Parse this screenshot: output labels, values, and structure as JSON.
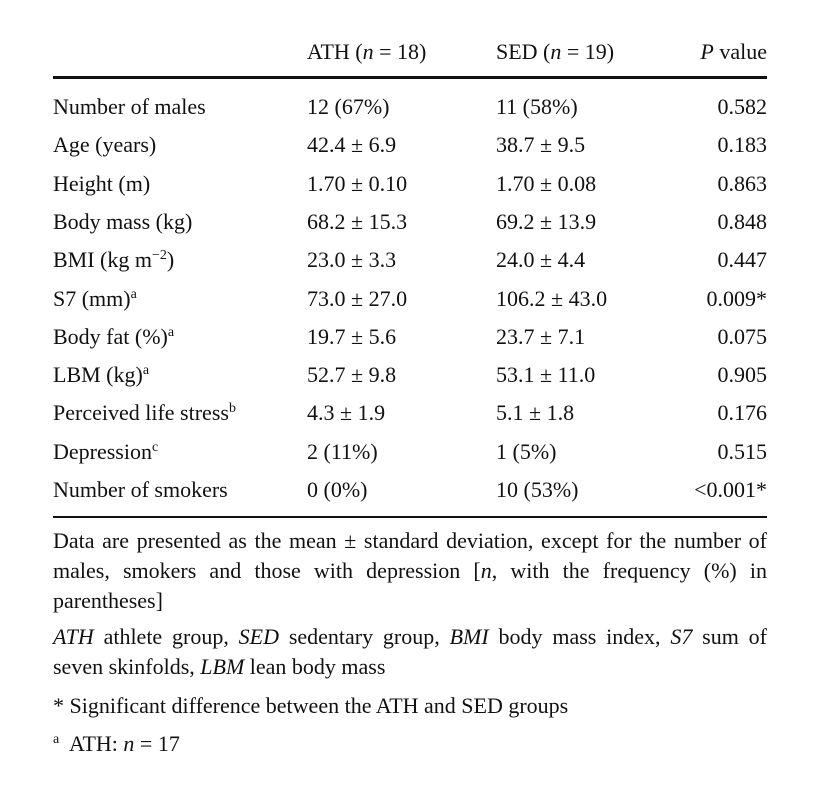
{
  "header": {
    "columns": [
      [
        {
          "t": "ATH ("
        },
        {
          "t": "n",
          "i": true
        },
        {
          "t": " = 18)"
        }
      ],
      [
        {
          "t": "SED ("
        },
        {
          "t": "n",
          "i": true
        },
        {
          "t": " = 19)"
        }
      ],
      [
        {
          "t": "P",
          "i": true
        },
        {
          "t": " value"
        }
      ]
    ]
  },
  "table": {
    "rows": [
      {
        "label": [
          {
            "t": "Number of males"
          }
        ],
        "cells": [
          "12 (67%)",
          "11 (58%)",
          "0.582"
        ]
      },
      {
        "label": [
          {
            "t": "Age (years)"
          }
        ],
        "cells": [
          "42.4 ± 6.9",
          "38.7 ± 9.5",
          "0.183"
        ]
      },
      {
        "label": [
          {
            "t": "Height (m)"
          }
        ],
        "cells": [
          "1.70 ± 0.10",
          "1.70 ± 0.08",
          "0.863"
        ]
      },
      {
        "label": [
          {
            "t": "Body mass (kg)"
          }
        ],
        "cells": [
          "68.2 ± 15.3",
          "69.2 ± 13.9",
          "0.848"
        ]
      },
      {
        "label": [
          {
            "t": "BMI (kg m"
          },
          {
            "t": "−2",
            "sup": true
          },
          {
            "t": ")"
          }
        ],
        "cells": [
          "23.0 ± 3.3",
          "24.0 ± 4.4",
          "0.447"
        ]
      },
      {
        "label": [
          {
            "t": "S7 (mm)"
          },
          {
            "t": "a",
            "sup": true
          }
        ],
        "cells": [
          "73.0 ± 27.0",
          "106.2 ± 43.0",
          "0.009*"
        ]
      },
      {
        "label": [
          {
            "t": "Body fat (%)"
          },
          {
            "t": "a",
            "sup": true
          }
        ],
        "cells": [
          "19.7 ± 5.6",
          "23.7 ± 7.1",
          "0.075"
        ]
      },
      {
        "label": [
          {
            "t": "LBM (kg)"
          },
          {
            "t": "a",
            "sup": true
          }
        ],
        "cells": [
          "52.7 ± 9.8",
          "53.1 ± 11.0",
          "0.905"
        ]
      },
      {
        "label": [
          {
            "t": "Perceived life stress"
          },
          {
            "t": "b",
            "sup": true
          }
        ],
        "cells": [
          "4.3 ± 1.9",
          "5.1 ± 1.8",
          "0.176"
        ]
      },
      {
        "label": [
          {
            "t": "Depression"
          },
          {
            "t": "c",
            "sup": true
          }
        ],
        "cells": [
          "2 (11%)",
          "1 (5%)",
          "0.515"
        ]
      },
      {
        "label": [
          {
            "t": "Number of smokers"
          }
        ],
        "cells": [
          "0 (0%)",
          "10 (53%)",
          "<0.001*"
        ]
      }
    ]
  },
  "notes": [
    [
      {
        "t": "Data are presented as the mean ± standard deviation, except for the number of males, smokers and those with depression ["
      },
      {
        "t": "n",
        "i": true
      },
      {
        "t": ", with the frequency (%) in parentheses]"
      }
    ],
    [
      {
        "t": "ATH",
        "i": true
      },
      {
        "t": " athlete group, "
      },
      {
        "t": "SED",
        "i": true
      },
      {
        "t": " sedentary group, "
      },
      {
        "t": "BMI",
        "i": true
      },
      {
        "t": " body mass index, "
      },
      {
        "t": "S7",
        "i": true
      },
      {
        "t": " sum of seven skinfolds, "
      },
      {
        "t": "LBM",
        "i": true
      },
      {
        "t": " lean body mass"
      }
    ],
    [
      {
        "t": "* Significant difference between the ATH and SED groups"
      }
    ],
    [
      {
        "t": "a",
        "sup": true
      },
      {
        "t": "  ATH: "
      },
      {
        "t": "n",
        "i": true
      },
      {
        "t": " = 17"
      }
    ]
  ]
}
